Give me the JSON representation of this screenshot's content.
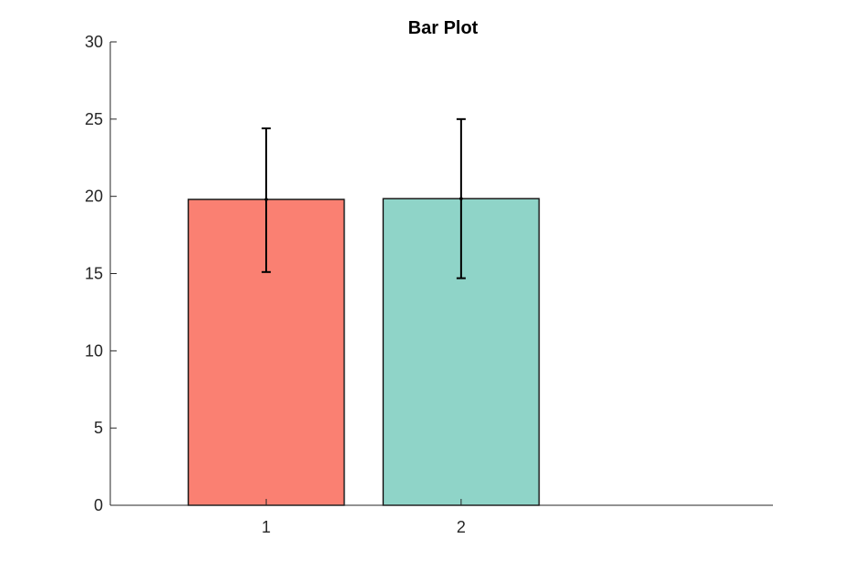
{
  "chart_data": {
    "type": "bar",
    "title": "Bar Plot",
    "xlabel": "",
    "ylabel": "",
    "categories": [
      "1",
      "2"
    ],
    "values": [
      19.8,
      19.85
    ],
    "error_low": [
      15.1,
      14.7
    ],
    "error_high": [
      24.4,
      25.0
    ],
    "bar_colors": [
      "#FA8072",
      "#8FD4C8"
    ],
    "ylim": [
      0,
      30
    ],
    "xlim": [
      0.2,
      3.6
    ],
    "yticks": [
      0,
      5,
      10,
      15,
      20,
      25,
      30
    ],
    "grid": false,
    "legend": "none"
  }
}
